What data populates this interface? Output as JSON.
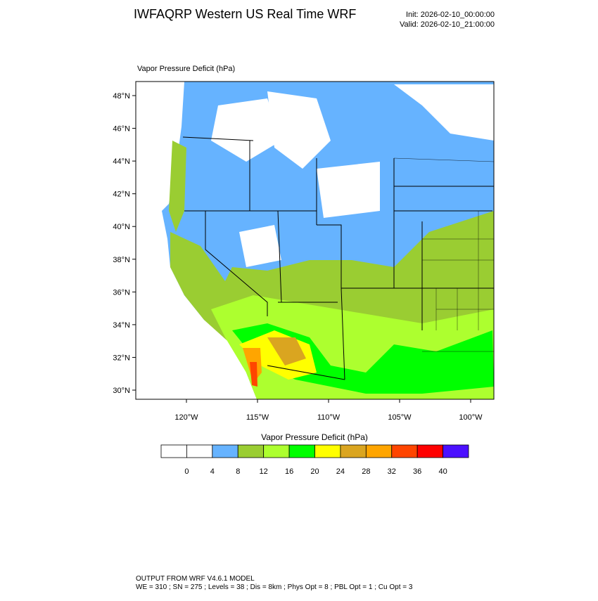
{
  "header": {
    "title": "IWFAQRP Western US Real Time WRF",
    "init": "Init: 2026-02-10_00:00:00",
    "valid": "Valid: 2026-02-10_21:00:00"
  },
  "map": {
    "label": "Vapor Pressure Deficit   (hPa)",
    "lat_ticks": [
      {
        "value": 48,
        "label": "48°N"
      },
      {
        "value": 46,
        "label": "46°N"
      },
      {
        "value": 44,
        "label": "44°N"
      },
      {
        "value": 42,
        "label": "42°N"
      },
      {
        "value": 40,
        "label": "40°N"
      },
      {
        "value": 38,
        "label": "38°N"
      },
      {
        "value": 36,
        "label": "36°N"
      },
      {
        "value": 34,
        "label": "34°N"
      },
      {
        "value": 32,
        "label": "32°N"
      },
      {
        "value": 30,
        "label": "30°N"
      }
    ],
    "lon_ticks": [
      {
        "value": -120,
        "label": "120°W"
      },
      {
        "value": -115,
        "label": "115°W"
      },
      {
        "value": -110,
        "label": "110°W"
      },
      {
        "value": -105,
        "label": "105°W"
      },
      {
        "value": -100,
        "label": "100°W"
      }
    ]
  },
  "colorbar": {
    "label": "Vapor Pressure Deficit  (hPa)",
    "colors": [
      "#ffffff",
      "#ffffff",
      "#66b3ff",
      "#9acd32",
      "#adff2f",
      "#00ff00",
      "#ffff00",
      "#daa520",
      "#ffa500",
      "#ff4500",
      "#ff0000",
      "#4b10ff"
    ],
    "levels": [
      0,
      4,
      8,
      12,
      16,
      20,
      24,
      28,
      32,
      36,
      40
    ]
  },
  "footer": {
    "line1": "OUTPUT FROM WRF V4.6.1 MODEL",
    "line2": "WE = 310 ; SN = 275 ; Levels = 38 ; Dis = 8km ; Phys Opt = 8 ; PBL Opt = 1 ; Cu Opt = 3"
  }
}
